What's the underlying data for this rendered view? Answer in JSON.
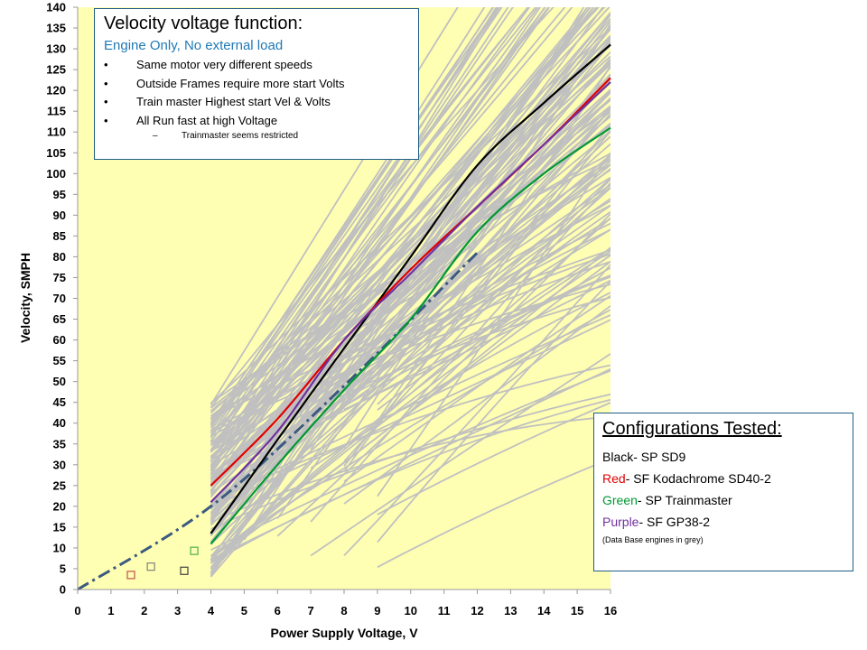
{
  "chart_data": {
    "type": "line",
    "xlabel": "Power Supply Voltage, V",
    "ylabel": "Velocity, SMPH",
    "xlim": [
      0,
      16
    ],
    "ylim": [
      0,
      140
    ],
    "x_ticks": [
      0,
      1,
      2,
      3,
      4,
      5,
      6,
      7,
      8,
      9,
      10,
      11,
      12,
      13,
      14,
      15,
      16
    ],
    "y_ticks": [
      0,
      5,
      10,
      15,
      20,
      25,
      30,
      35,
      40,
      45,
      50,
      55,
      60,
      65,
      70,
      75,
      80,
      85,
      90,
      95,
      100,
      105,
      110,
      115,
      120,
      125,
      130,
      135,
      140
    ],
    "grid": false,
    "background_color": "#ffffb3",
    "shaded_region": {
      "x_from": 0,
      "x_to": 4,
      "color": "#ffffb3"
    },
    "series": [
      {
        "name": "Black- SP SD9",
        "color": "#000000",
        "x": [
          4,
          6,
          8,
          10,
          12,
          14,
          16
        ],
        "y": [
          13.5,
          36,
          58,
          80,
          102,
          117,
          131
        ]
      },
      {
        "name": "Red- SF Kodachrome SD40-2",
        "color": "#e00000",
        "x": [
          4,
          6,
          8,
          10,
          12,
          14,
          16
        ],
        "y": [
          25,
          41,
          60,
          77,
          92,
          107,
          123
        ]
      },
      {
        "name": "Green- SP Trainmaster",
        "color": "#009933",
        "x": [
          4,
          6,
          8,
          10,
          12,
          14,
          16
        ],
        "y": [
          11,
          30,
          48,
          65,
          86,
          100,
          111
        ]
      },
      {
        "name": "Purple- SF GP38-2",
        "color": "#7030a0",
        "x": [
          4,
          6,
          8,
          10,
          12,
          14,
          16
        ],
        "y": [
          21,
          38,
          60,
          76,
          92,
          107,
          122
        ]
      }
    ],
    "trend_line": {
      "style": "dash-dot",
      "color": "#3b5a80",
      "x": [
        0,
        4,
        8,
        12
      ],
      "y": [
        0,
        20,
        49,
        81
      ]
    },
    "markers": [
      {
        "x": 1.6,
        "y": 3.5,
        "color": "#c0504d"
      },
      {
        "x": 2.2,
        "y": 5.5,
        "color": "#7f7f7f"
      },
      {
        "x": 3.2,
        "y": 4.5,
        "color": "#404040"
      },
      {
        "x": 3.5,
        "y": 9.3,
        "color": "#4caf50"
      }
    ],
    "database_color": "#c0c0c0"
  },
  "velocity_box": {
    "title": "Velocity voltage function:",
    "subtitle": "Engine Only, No external load",
    "bullets": [
      "Same motor very different speeds",
      "Outside Frames require more start Volts",
      "Train master Highest start Vel & Volts",
      "All Run fast at high Voltage"
    ],
    "sub_bullet": "Trainmaster seems restricted"
  },
  "config_box": {
    "title": "Configurations Tested:",
    "items": [
      {
        "color_word": "Black",
        "rest": "- SP SD9",
        "color": "#000000"
      },
      {
        "color_word": "Red",
        "rest": "- SF Kodachrome SD40-2",
        "color": "#e00000"
      },
      {
        "color_word": "Green",
        "rest": "-  SP Trainmaster",
        "color": "#009933"
      },
      {
        "color_word": "Purple",
        "rest": "- SF GP38-2",
        "color": "#7030a0"
      }
    ],
    "note": "(Data Base engines in grey)"
  }
}
